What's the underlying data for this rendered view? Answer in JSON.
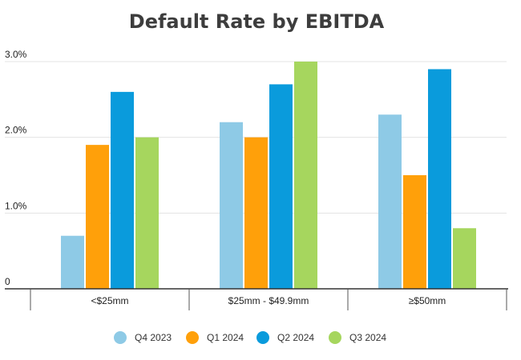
{
  "chart_data": {
    "type": "bar",
    "title": "Default Rate by EBITDA",
    "xlabel": "",
    "ylabel": "",
    "categories": [
      "<$25mm",
      "$25mm - $49.9mm",
      "≥$50mm"
    ],
    "series": [
      {
        "name": "Q4 2023",
        "color": "#8ecae6",
        "values": [
          0.7,
          2.2,
          2.3
        ]
      },
      {
        "name": "Q1 2024",
        "color": "#ffa00a",
        "values": [
          1.9,
          2.0,
          1.5
        ]
      },
      {
        "name": "Q2 2024",
        "color": "#0a9bdc",
        "values": [
          2.6,
          2.7,
          2.9
        ]
      },
      {
        "name": "Q3 2024",
        "color": "#a6d65e",
        "values": [
          2.0,
          3.0,
          0.8
        ]
      }
    ],
    "y_ticks": [
      {
        "value": 0,
        "label": "0"
      },
      {
        "value": 1.0,
        "label": "1.0%"
      },
      {
        "value": 2.0,
        "label": "2.0%"
      },
      {
        "value": 3.0,
        "label": "3.0%"
      }
    ],
    "ylim": [
      0,
      3.0
    ],
    "grid": true,
    "legend_position": "bottom"
  }
}
